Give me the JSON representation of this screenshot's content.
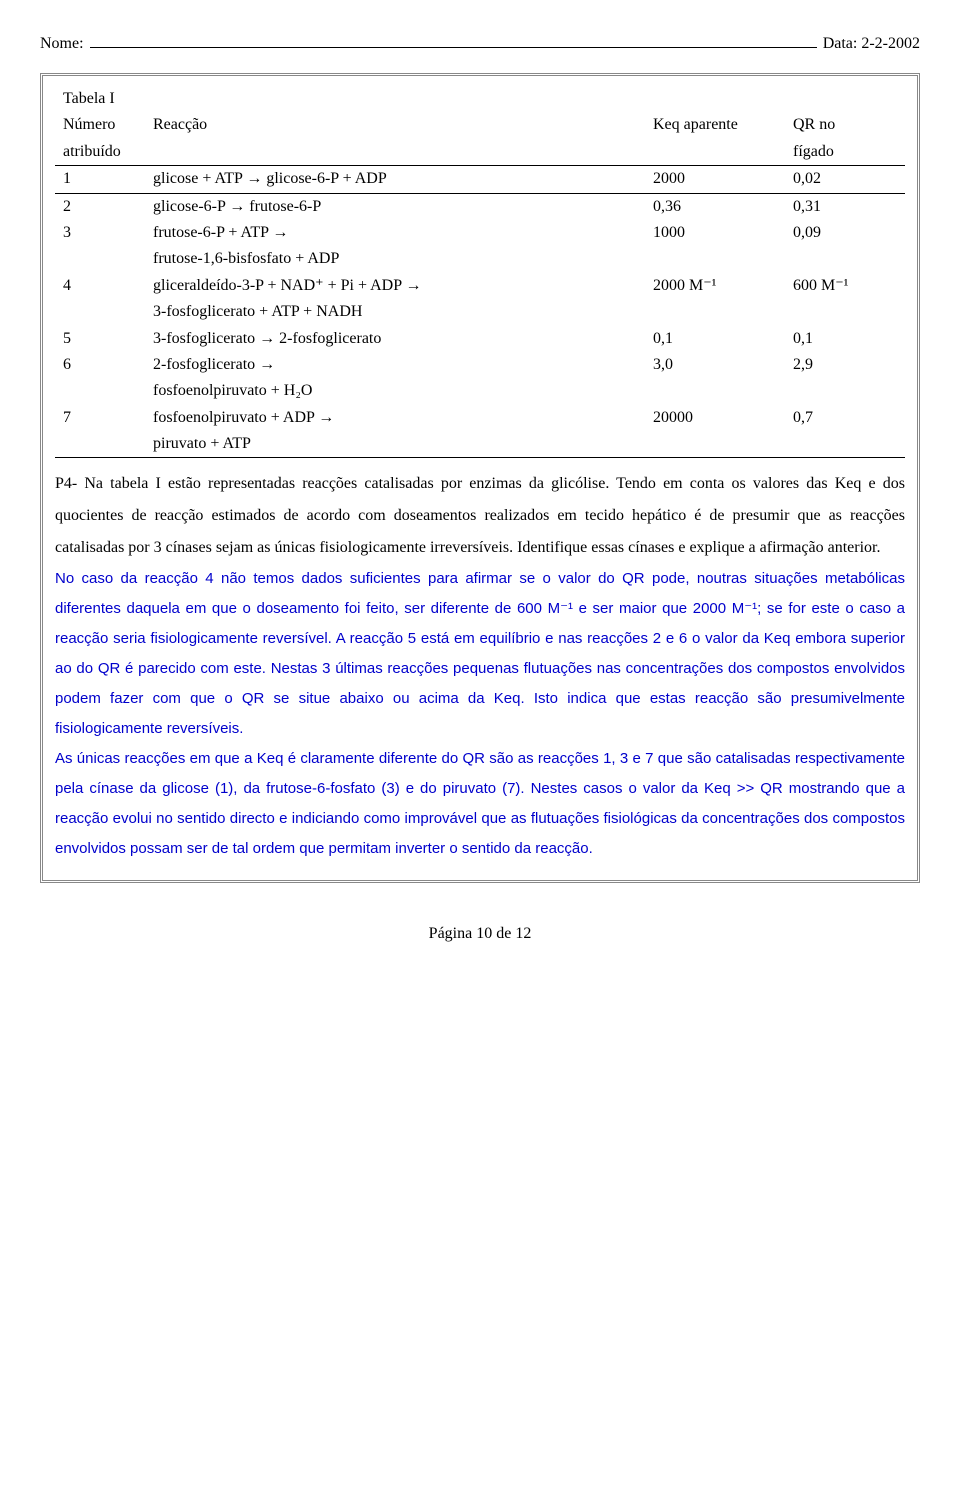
{
  "header": {
    "nome_label": "Nome:",
    "data_label": "Data: 2-2-2002"
  },
  "table": {
    "title": "Tabela I",
    "headers": {
      "num1": "Número",
      "num2": "atribuído",
      "react": "Reacção",
      "keq": "Keq aparente",
      "qr1": "QR no",
      "qr2": "fígado"
    },
    "rows": [
      {
        "n": "1",
        "r": "glicose + ATP → glicose-6-P + ADP",
        "k": "2000",
        "q": "0,02"
      },
      {
        "n": "2",
        "r": "glicose-6-P → frutose-6-P",
        "k": "0,36",
        "q": "0,31"
      },
      {
        "n": "3",
        "r": "frutose-6-P + ATP →",
        "r2": "frutose-1,6-bisfosfato + ADP",
        "k": "1000",
        "q": "0,09"
      },
      {
        "n": "4",
        "r": "gliceraldeído-3-P + NAD⁺ + Pi + ADP →",
        "r2": "3-fosfoglicerato + ATP + NADH",
        "k": "2000 M⁻¹",
        "q": "600 M⁻¹"
      },
      {
        "n": "5",
        "r": "3-fosfoglicerato → 2-fosfoglicerato",
        "k": "0,1",
        "q": "0,1"
      },
      {
        "n": "6",
        "r": "2-fosfoglicerato →",
        "r2": "fosfoenolpiruvato + H₂O",
        "k": "3,0",
        "q": "2,9"
      },
      {
        "n": "7",
        "r": "fosfoenolpiruvato + ADP →",
        "r2": "piruvato + ATP",
        "k": "20000",
        "q": "0,7"
      }
    ]
  },
  "para": {
    "black1": "P4- Na tabela I estão representadas reacções catalisadas por enzimas da glicólise. Tendo em conta os valores das Keq e dos quocientes de reacção estimados de acordo com doseamentos realizados em tecido hepático é de presumir que as reacções catalisadas por 3 cínases sejam as únicas fisiologicamente irreversíveis. Identifique essas cínases e explique a afirmação anterior.",
    "blue1": "No caso da reacção 4 não temos dados suficientes para afirmar se o valor do QR pode, noutras situações metabólicas diferentes daquela em que o doseamento foi feito, ser diferente de 600 M⁻¹ e ser maior que 2000 M⁻¹; se for este o caso a reacção seria fisiologicamente reversível. A reacção 5 está em equilíbrio e nas reacções 2 e 6 o valor da Keq embora superior ao do QR é parecido com este. Nestas 3 últimas reacções pequenas flutuações nas concentrações dos compostos envolvidos podem fazer com que o QR se situe abaixo ou acima da Keq. Isto indica que estas reacção são presumivelmente fisiologicamente reversíveis.",
    "blue2": "As únicas reacções em que a Keq é claramente diferente do QR são as reacções 1, 3 e 7 que são catalisadas respectivamente pela cínase da glicose (1), da frutose-6-fosfato (3) e do piruvato (7). Nestes casos o valor da Keq >> QR mostrando que a reacção evolui no sentido directo e indiciando como improvável que as flutuações fisiológicas da concentrações dos compostos envolvidos possam ser de tal ordem que permitam inverter o sentido da reacção."
  },
  "footer": "Página 10 de 12"
}
